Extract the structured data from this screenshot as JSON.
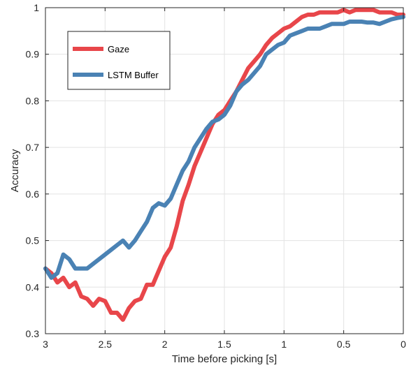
{
  "chart_data": {
    "type": "line",
    "xlabel": "Time before picking [s]",
    "ylabel": "Accuracy",
    "xlim": [
      3,
      0
    ],
    "ylim": [
      0.3,
      1
    ],
    "x_reversed": true,
    "x_ticks": [
      3,
      2.5,
      2,
      1.5,
      1,
      0.5,
      0
    ],
    "x_tick_labels": [
      "3",
      "2.5",
      "2",
      "1.5",
      "1",
      "0.5",
      "0"
    ],
    "y_ticks": [
      0.3,
      0.4,
      0.5,
      0.6,
      0.7,
      0.8,
      0.9,
      1
    ],
    "y_tick_labels": [
      "0.3",
      "0.4",
      "0.5",
      "0.6",
      "0.7",
      "0.8",
      "0.9",
      "1"
    ],
    "grid": true,
    "legend_position": "top-left",
    "series": [
      {
        "name": "Gaze",
        "color": "#e8464a",
        "x": [
          3.0,
          2.95,
          2.9,
          2.85,
          2.8,
          2.75,
          2.7,
          2.65,
          2.6,
          2.55,
          2.5,
          2.45,
          2.4,
          2.35,
          2.3,
          2.25,
          2.2,
          2.15,
          2.1,
          2.05,
          2.0,
          1.95,
          1.9,
          1.85,
          1.8,
          1.75,
          1.7,
          1.65,
          1.6,
          1.55,
          1.5,
          1.45,
          1.4,
          1.35,
          1.3,
          1.25,
          1.2,
          1.15,
          1.1,
          1.05,
          1.0,
          0.95,
          0.9,
          0.85,
          0.8,
          0.75,
          0.7,
          0.65,
          0.6,
          0.55,
          0.5,
          0.45,
          0.4,
          0.35,
          0.3,
          0.25,
          0.2,
          0.15,
          0.1,
          0.05,
          0.0
        ],
        "values": [
          0.44,
          0.43,
          0.41,
          0.42,
          0.4,
          0.41,
          0.38,
          0.375,
          0.36,
          0.375,
          0.37,
          0.345,
          0.345,
          0.33,
          0.355,
          0.37,
          0.375,
          0.405,
          0.405,
          0.435,
          0.465,
          0.485,
          0.53,
          0.585,
          0.62,
          0.66,
          0.69,
          0.72,
          0.75,
          0.77,
          0.78,
          0.8,
          0.82,
          0.845,
          0.87,
          0.885,
          0.9,
          0.92,
          0.935,
          0.945,
          0.955,
          0.96,
          0.97,
          0.98,
          0.985,
          0.985,
          0.99,
          0.99,
          0.99,
          0.99,
          0.995,
          0.99,
          0.995,
          0.995,
          0.995,
          0.995,
          0.99,
          0.99,
          0.99,
          0.985,
          0.985
        ]
      },
      {
        "name": "LSTM Buffer",
        "color": "#4a82b4",
        "x": [
          3.0,
          2.95,
          2.9,
          2.85,
          2.8,
          2.75,
          2.7,
          2.65,
          2.6,
          2.55,
          2.5,
          2.45,
          2.4,
          2.35,
          2.3,
          2.25,
          2.2,
          2.15,
          2.1,
          2.05,
          2.0,
          1.95,
          1.9,
          1.85,
          1.8,
          1.75,
          1.7,
          1.65,
          1.6,
          1.55,
          1.5,
          1.45,
          1.4,
          1.35,
          1.3,
          1.25,
          1.2,
          1.15,
          1.1,
          1.05,
          1.0,
          0.95,
          0.9,
          0.85,
          0.8,
          0.75,
          0.7,
          0.65,
          0.6,
          0.55,
          0.5,
          0.45,
          0.4,
          0.35,
          0.3,
          0.25,
          0.2,
          0.15,
          0.1,
          0.05,
          0.0
        ],
        "values": [
          0.44,
          0.42,
          0.43,
          0.47,
          0.46,
          0.44,
          0.44,
          0.44,
          0.45,
          0.46,
          0.47,
          0.48,
          0.49,
          0.5,
          0.485,
          0.5,
          0.52,
          0.54,
          0.57,
          0.58,
          0.575,
          0.59,
          0.62,
          0.65,
          0.67,
          0.7,
          0.72,
          0.74,
          0.755,
          0.76,
          0.77,
          0.79,
          0.82,
          0.835,
          0.845,
          0.86,
          0.875,
          0.9,
          0.91,
          0.92,
          0.925,
          0.94,
          0.945,
          0.95,
          0.955,
          0.955,
          0.955,
          0.96,
          0.965,
          0.965,
          0.965,
          0.97,
          0.97,
          0.97,
          0.968,
          0.968,
          0.965,
          0.97,
          0.975,
          0.978,
          0.98
        ]
      }
    ]
  }
}
